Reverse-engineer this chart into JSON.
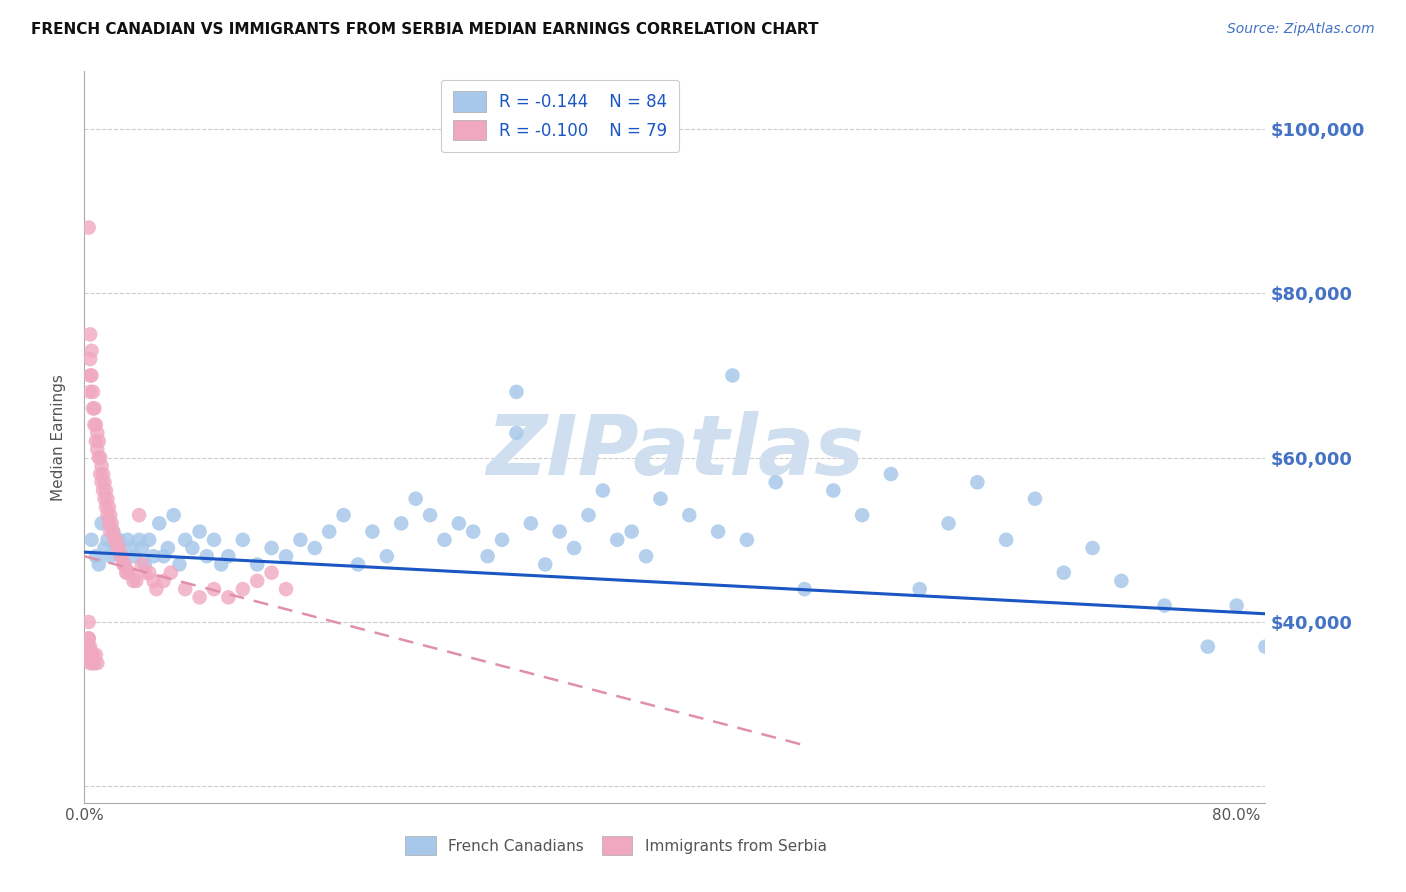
{
  "title": "FRENCH CANADIAN VS IMMIGRANTS FROM SERBIA MEDIAN EARNINGS CORRELATION CHART",
  "source": "Source: ZipAtlas.com",
  "ylabel": "Median Earnings",
  "yticks": [
    20000,
    40000,
    60000,
    80000,
    100000
  ],
  "ytick_labels": [
    "",
    "$40,000",
    "$60,000",
    "$80,000",
    "$100,000"
  ],
  "xlim": [
    0.0,
    0.82
  ],
  "ylim": [
    18000,
    107000
  ],
  "legend_blue_r": "R = -0.144",
  "legend_blue_n": "N = 84",
  "legend_pink_r": "R = -0.100",
  "legend_pink_n": "N = 79",
  "blue_color": "#a8c8ea",
  "pink_color": "#f0a8c0",
  "trendline_blue_color": "#1a56c4",
  "trendline_pink_color": "#e090a8",
  "watermark": "ZIPatlas",
  "watermark_color": "#d0dff0",
  "blue_scatter_x": [
    0.005,
    0.008,
    0.01,
    0.012,
    0.014,
    0.016,
    0.018,
    0.02,
    0.022,
    0.024,
    0.026,
    0.028,
    0.03,
    0.032,
    0.035,
    0.038,
    0.04,
    0.042,
    0.045,
    0.048,
    0.052,
    0.055,
    0.058,
    0.062,
    0.066,
    0.07,
    0.075,
    0.08,
    0.085,
    0.09,
    0.095,
    0.1,
    0.11,
    0.12,
    0.13,
    0.14,
    0.15,
    0.16,
    0.17,
    0.18,
    0.19,
    0.2,
    0.21,
    0.22,
    0.23,
    0.24,
    0.25,
    0.26,
    0.27,
    0.28,
    0.29,
    0.3,
    0.31,
    0.32,
    0.33,
    0.34,
    0.35,
    0.36,
    0.37,
    0.38,
    0.39,
    0.4,
    0.42,
    0.44,
    0.46,
    0.48,
    0.5,
    0.52,
    0.54,
    0.56,
    0.58,
    0.6,
    0.62,
    0.64,
    0.66,
    0.68,
    0.7,
    0.72,
    0.75,
    0.78,
    0.8,
    0.82,
    0.3,
    0.45
  ],
  "blue_scatter_y": [
    50000,
    48000,
    47000,
    52000,
    49000,
    50000,
    48000,
    51000,
    49000,
    50000,
    48000,
    47000,
    50000,
    49000,
    48000,
    50000,
    49000,
    47000,
    50000,
    48000,
    52000,
    48000,
    49000,
    53000,
    47000,
    50000,
    49000,
    51000,
    48000,
    50000,
    47000,
    48000,
    50000,
    47000,
    49000,
    48000,
    50000,
    49000,
    51000,
    53000,
    47000,
    51000,
    48000,
    52000,
    55000,
    53000,
    50000,
    52000,
    51000,
    48000,
    50000,
    68000,
    52000,
    47000,
    51000,
    49000,
    53000,
    56000,
    50000,
    51000,
    48000,
    55000,
    53000,
    51000,
    50000,
    57000,
    44000,
    56000,
    53000,
    58000,
    44000,
    52000,
    57000,
    50000,
    55000,
    46000,
    49000,
    45000,
    42000,
    37000,
    42000,
    37000,
    63000,
    70000
  ],
  "pink_scatter_x": [
    0.003,
    0.004,
    0.004,
    0.004,
    0.004,
    0.005,
    0.005,
    0.006,
    0.006,
    0.007,
    0.007,
    0.008,
    0.008,
    0.009,
    0.009,
    0.01,
    0.01,
    0.011,
    0.011,
    0.012,
    0.012,
    0.013,
    0.013,
    0.014,
    0.014,
    0.015,
    0.015,
    0.016,
    0.016,
    0.017,
    0.017,
    0.018,
    0.018,
    0.019,
    0.02,
    0.021,
    0.022,
    0.023,
    0.024,
    0.025,
    0.026,
    0.027,
    0.028,
    0.029,
    0.03,
    0.032,
    0.034,
    0.036,
    0.038,
    0.04,
    0.042,
    0.045,
    0.048,
    0.05,
    0.055,
    0.06,
    0.07,
    0.08,
    0.09,
    0.1,
    0.11,
    0.12,
    0.13,
    0.14,
    0.003,
    0.003,
    0.003,
    0.003,
    0.004,
    0.004,
    0.004,
    0.004,
    0.005,
    0.005,
    0.006,
    0.006,
    0.007,
    0.008,
    0.009
  ],
  "pink_scatter_y": [
    88000,
    75000,
    72000,
    70000,
    68000,
    73000,
    70000,
    68000,
    66000,
    66000,
    64000,
    64000,
    62000,
    63000,
    61000,
    62000,
    60000,
    60000,
    58000,
    59000,
    57000,
    58000,
    56000,
    57000,
    55000,
    56000,
    54000,
    55000,
    53000,
    54000,
    52000,
    53000,
    51000,
    52000,
    51000,
    50000,
    50000,
    49000,
    49000,
    48000,
    48000,
    47000,
    47000,
    46000,
    46000,
    46000,
    45000,
    45000,
    53000,
    47000,
    46000,
    46000,
    45000,
    44000,
    45000,
    46000,
    44000,
    43000,
    44000,
    43000,
    44000,
    45000,
    46000,
    44000,
    40000,
    38000,
    38000,
    37000,
    37000,
    36000,
    35000,
    36000,
    35000,
    36000,
    35000,
    36000,
    35000,
    36000,
    35000
  ],
  "blue_trend_x": [
    0.0,
    0.82
  ],
  "blue_trend_y": [
    48500,
    41000
  ],
  "pink_trend_x": [
    0.0,
    0.5
  ],
  "pink_trend_y": [
    48000,
    25000
  ]
}
